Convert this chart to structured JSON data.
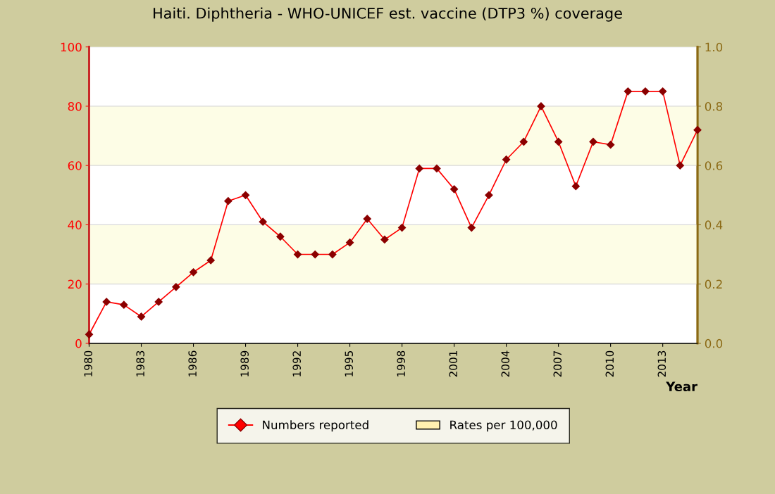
{
  "chart_data": {
    "type": "line",
    "title": "Haiti. Diphtheria - WHO-UNICEF est. vaccine (DTP3 %) coverage",
    "xlabel": "Year",
    "x": [
      1980,
      1981,
      1982,
      1983,
      1984,
      1985,
      1986,
      1987,
      1988,
      1989,
      1990,
      1991,
      1992,
      1993,
      1994,
      1995,
      1996,
      1997,
      1998,
      1999,
      2000,
      2001,
      2002,
      2003,
      2004,
      2005,
      2006,
      2007,
      2008,
      2009,
      2010,
      2011,
      2012,
      2013,
      2014,
      2015
    ],
    "series": [
      {
        "name": "Numbers reported",
        "color": "#ff0000",
        "marker": "diamond",
        "values": [
          3,
          14,
          13,
          9,
          14,
          19,
          24,
          28,
          48,
          50,
          41,
          36,
          30,
          30,
          30,
          34,
          42,
          35,
          39,
          59,
          59,
          52,
          39,
          50,
          62,
          68,
          80,
          68,
          53,
          68,
          67,
          85,
          85,
          85,
          60,
          72
        ]
      },
      {
        "name": "Rates per 100,000",
        "type": "bar",
        "color": "#fff0b0",
        "values": [
          null,
          null,
          null,
          null,
          null,
          null,
          null,
          null,
          null,
          null,
          null,
          null,
          null,
          null,
          null,
          null,
          null,
          null,
          null,
          null,
          null,
          null,
          null,
          null,
          null,
          null,
          null,
          null,
          null,
          null,
          null,
          null,
          null,
          null,
          null,
          null
        ]
      }
    ],
    "xlim": [
      1980,
      2015
    ],
    "xticks": [
      1980,
      1983,
      1986,
      1989,
      1992,
      1995,
      1998,
      2001,
      2004,
      2007,
      2010,
      2013
    ],
    "ylim": [
      0,
      100
    ],
    "yticks": [
      0,
      20,
      40,
      60,
      80,
      100
    ],
    "y2lim": [
      0,
      1
    ],
    "y2ticks": [
      {
        "value": 0,
        "label": "0.0"
      },
      {
        "value": 0.2,
        "label": "0.2"
      },
      {
        "value": 0.4,
        "label": "0.4"
      },
      {
        "value": 0.6,
        "label": "0.6"
      },
      {
        "value": 0.8,
        "label": "0.8"
      },
      {
        "value": 1,
        "label": "1.0"
      }
    ],
    "bands": [
      {
        "axis": "y",
        "from": 20,
        "to": 40,
        "color": "#fdfde6"
      },
      {
        "axis": "y",
        "from": 60,
        "to": 80,
        "color": "#fdfde6"
      }
    ],
    "grid": "y",
    "legend": "bottom"
  }
}
